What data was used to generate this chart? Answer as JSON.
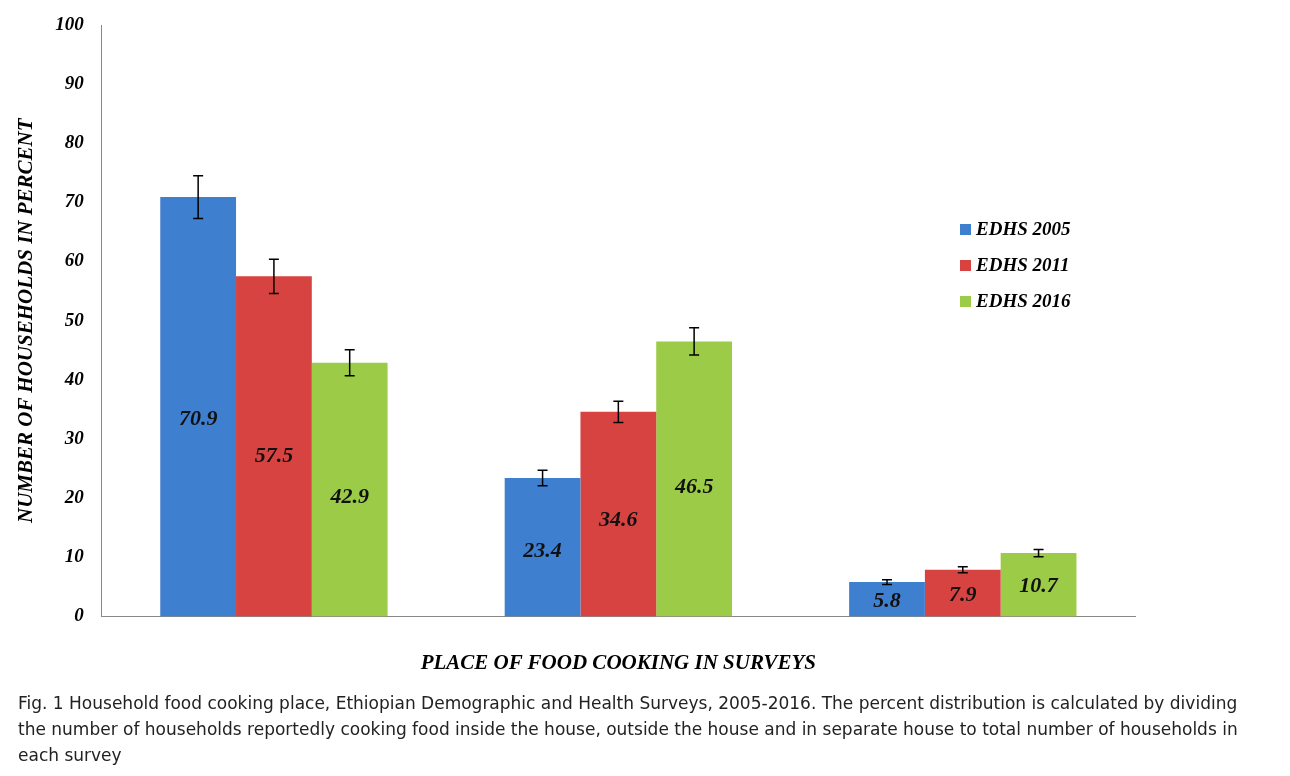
{
  "chart_data": {
    "type": "bar",
    "xlabel": "PLACE OF FOOD COOKING IN SURVEYS",
    "ylabel": "NUMBER OF HOUSEHOLDS IN PERCENT",
    "categories": [
      null,
      null,
      null
    ],
    "series": [
      {
        "name": "EDHS 2005",
        "color": "#3f7fd0",
        "values": [
          70.9,
          23.4,
          5.8
        ],
        "errors": [
          3.6,
          1.3,
          0.4
        ]
      },
      {
        "name": "EDHS 2011",
        "color": "#d64340",
        "values": [
          57.5,
          34.6,
          7.9
        ],
        "errors": [
          2.9,
          1.8,
          0.5
        ]
      },
      {
        "name": "EDHS 2016",
        "color": "#9ccb48",
        "values": [
          42.9,
          46.5,
          10.7
        ],
        "errors": [
          2.2,
          2.3,
          0.6
        ]
      }
    ],
    "ylim": [
      0,
      100
    ],
    "yticks": [
      0,
      10,
      20,
      30,
      40,
      50,
      60,
      70,
      80,
      90,
      100
    ],
    "grid": false,
    "legend": "right",
    "data_labels": true,
    "annotations": [
      "Fig. 1 Household food cooking place, Ethiopian Demographic and Health Surveys, 2005-2016. The percent distribution is calculated by dividing the number of households reportedly cooking food inside the house, outside the house and in separate house to total number of households in each survey"
    ]
  }
}
